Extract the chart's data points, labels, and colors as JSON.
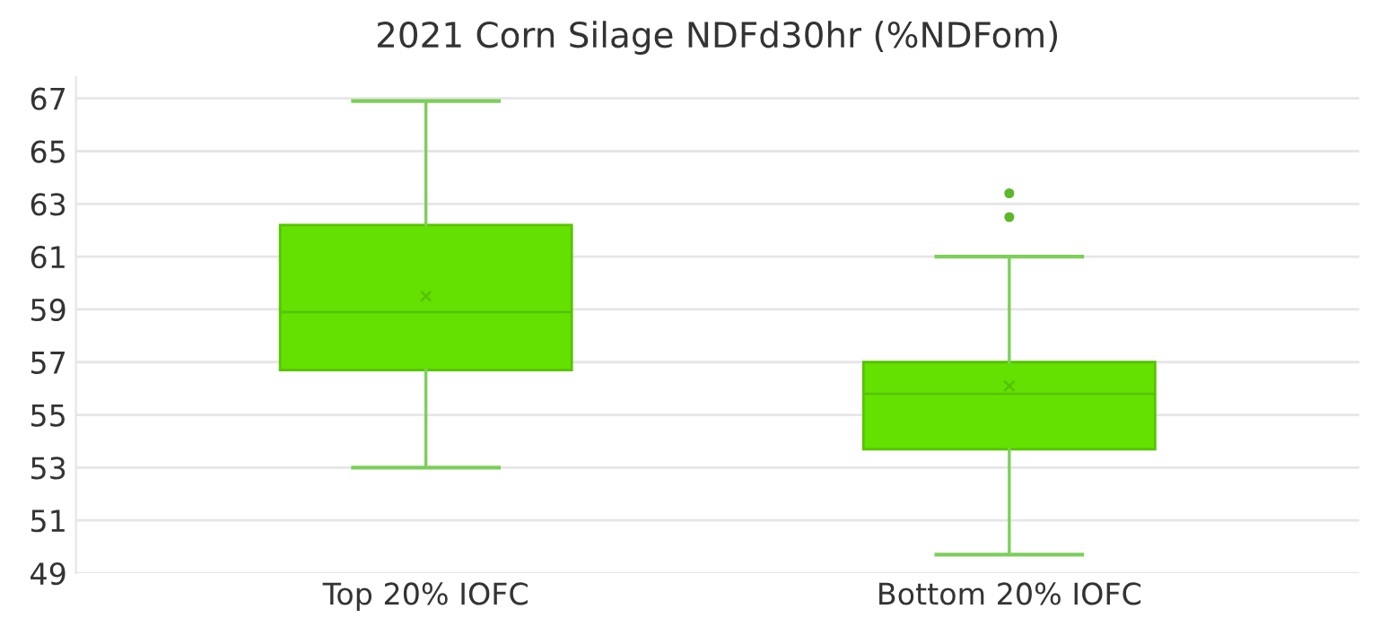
{
  "chart_data": {
    "type": "box",
    "title": "2021 Corn Silage NDFd30hr (%NDFom)",
    "categories": [
      "Top 20% IOFC",
      "Bottom 20% IOFC"
    ],
    "color": "#64e100",
    "boxes": [
      {
        "low": 53.0,
        "q1": 56.7,
        "median": 58.9,
        "q3": 62.2,
        "high": 66.9,
        "mean": 59.5
      },
      {
        "low": 49.7,
        "q1": 53.7,
        "median": 55.8,
        "q3": 57.0,
        "high": 61.0,
        "mean": 56.1,
        "outliers": [
          62.5,
          63.4
        ]
      }
    ],
    "ylim": [
      49,
      67.8
    ],
    "yticks": [
      49,
      51,
      53,
      55,
      57,
      59,
      61,
      63,
      65,
      67
    ],
    "grid": "y",
    "legend": false
  }
}
